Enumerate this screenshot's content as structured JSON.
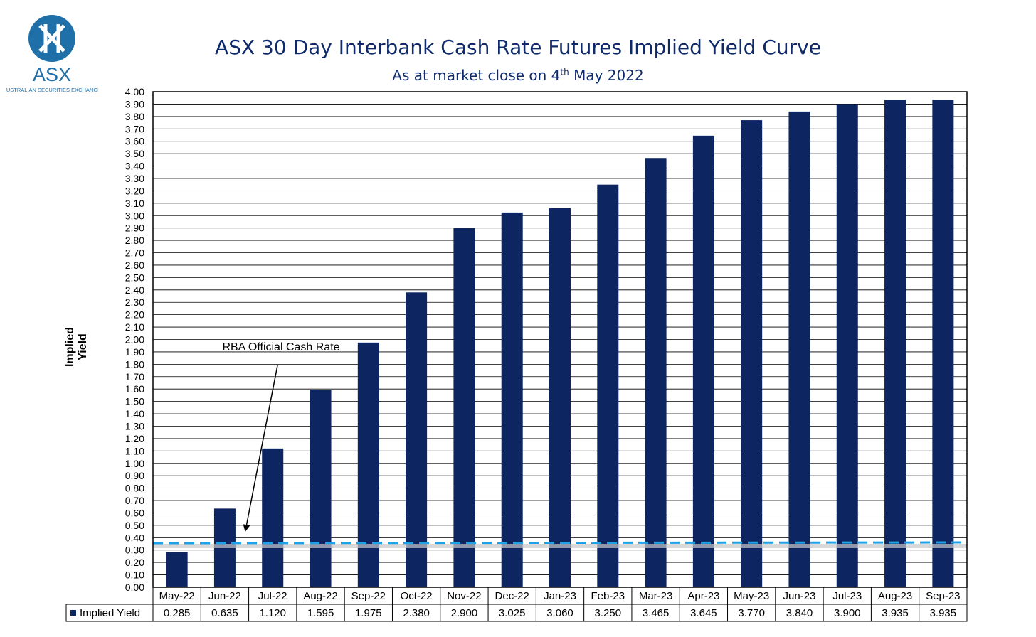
{
  "logo": {
    "text": "ASX",
    "subtext": "AUSTRALIAN SECURITIES EXCHANGE",
    "color": "#1f6fa8"
  },
  "title": "ASX 30 Day Interbank Cash Rate Futures Implied Yield Curve",
  "subtitle": {
    "prefix": "As at market close on 4",
    "sup": "th",
    "suffix": " May 2022"
  },
  "colors": {
    "bar": "#0d2560",
    "cash_rate_line": "#1ea1e6",
    "title": "#0f2a6b"
  },
  "chart_data": {
    "type": "bar",
    "title": "ASX 30 Day Interbank Cash Rate Futures Implied Yield Curve",
    "subtitle": "As at market close on 4th May 2022",
    "xlabel": "",
    "ylabel": "Implied Yield",
    "ylim": [
      0,
      4.0
    ],
    "ytick_step": 0.1,
    "grid": true,
    "categories": [
      "May-22",
      "Jun-22",
      "Jul-22",
      "Aug-22",
      "Sep-22",
      "Oct-22",
      "Nov-22",
      "Dec-22",
      "Jan-23",
      "Feb-23",
      "Mar-23",
      "Apr-23",
      "May-23",
      "Jun-23",
      "Jul-23",
      "Aug-23",
      "Sep-23"
    ],
    "series": [
      {
        "name": "Implied Yield",
        "values": [
          0.285,
          0.635,
          1.12,
          1.595,
          1.975,
          2.38,
          2.9,
          3.025,
          3.06,
          3.25,
          3.465,
          3.645,
          3.77,
          3.84,
          3.9,
          3.935,
          3.935
        ],
        "value_labels": [
          "0.285",
          "0.635",
          "1.120",
          "1.595",
          "1.975",
          "2.380",
          "2.900",
          "3.025",
          "3.060",
          "3.250",
          "3.465",
          "3.645",
          "3.770",
          "3.840",
          "3.900",
          "3.935",
          "3.935"
        ]
      }
    ],
    "reference_line": {
      "value": 0.35,
      "style": "dashed"
    },
    "annotation": {
      "text": "RBA Official Cash Rate"
    },
    "data_table": true
  }
}
